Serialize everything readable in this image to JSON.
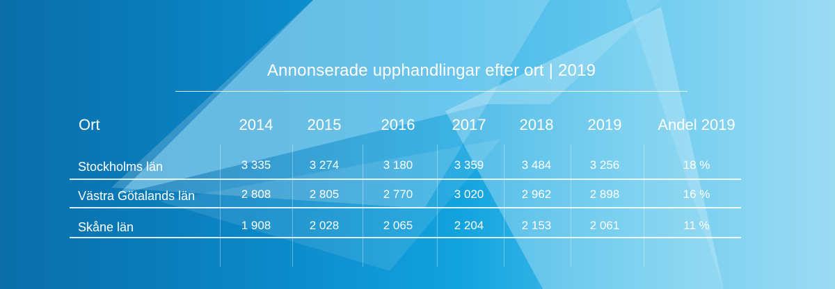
{
  "chart_data": {
    "type": "table",
    "title": "Annonserade upphandlingar efter ort | 2019",
    "columns": [
      "Ort",
      "2014",
      "2015",
      "2016",
      "2017",
      "2018",
      "2019",
      "Andel 2019"
    ],
    "rows": [
      {
        "label": "Stockholms län",
        "values": [
          "3 335",
          "3 274",
          "3 180",
          "3 359",
          "3 484",
          "3 256",
          "18 %"
        ]
      },
      {
        "label": "Västra Götalands län",
        "values": [
          "2 808",
          "2 805",
          "2 770",
          "3 020",
          "2 962",
          "2 898",
          "16 %"
        ]
      },
      {
        "label": "Skåne län",
        "values": [
          "1 908",
          "2 028",
          "2 065",
          "2 204",
          "2 153",
          "2 061",
          "11 %"
        ]
      }
    ]
  }
}
